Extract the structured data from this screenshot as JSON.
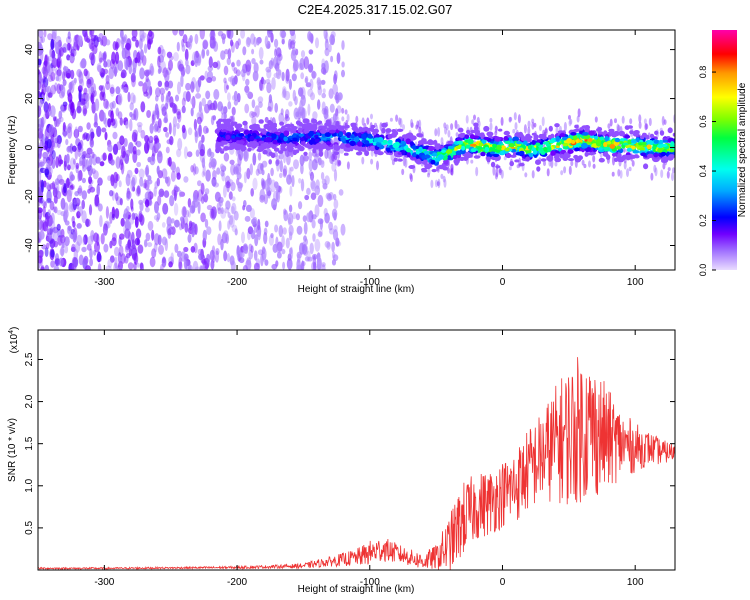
{
  "title": "C2E4.2025.317.15.02.G07",
  "colors": {
    "snr_line": "#ee3333",
    "noise_points": "#8a2be2",
    "frame": "#000000"
  },
  "colorbar": {
    "label": "Normalized spectral amplitude",
    "ticks": [
      "0.0",
      "0.2",
      "0.4",
      "0.6",
      "0.8"
    ],
    "tick_values": [
      0.0,
      0.2,
      0.4,
      0.6,
      0.8
    ],
    "range": [
      0.0,
      0.97
    ]
  },
  "chart_data": [
    {
      "type": "heatmap",
      "title": "C2E4.2025.317.15.02.G07",
      "xlabel": "Height of straight line (km)",
      "ylabel": "Frequency (Hz)",
      "xlim": [
        -350,
        130
      ],
      "ylim": [
        -50,
        48
      ],
      "x_ticks": [
        -300,
        -200,
        -100,
        0,
        100
      ],
      "x_tick_labels": [
        "-300",
        "-200",
        "-100",
        "0",
        "100"
      ],
      "y_ticks": [
        -40,
        -20,
        0,
        20,
        40
      ],
      "y_tick_labels": [
        "-40",
        "-20",
        "0",
        "20",
        "40"
      ],
      "value_label": "Normalized spectral amplitude",
      "value_range": [
        0.0,
        0.97
      ],
      "ridge": {
        "x": [
          -215,
          -180,
          -150,
          -120,
          -100,
          -80,
          -60,
          -50,
          -40,
          -30,
          -20,
          -10,
          0,
          10,
          20,
          30,
          40,
          50,
          60,
          70,
          80,
          90,
          100,
          110,
          120,
          130
        ],
        "freq_hz": [
          5,
          4,
          4,
          4,
          3,
          1,
          -2,
          -4,
          -2,
          1,
          1,
          0,
          0,
          1,
          -1,
          0,
          1,
          2,
          3,
          2,
          1,
          1,
          1,
          0,
          0,
          0
        ],
        "peak_amplitude": [
          0.25,
          0.3,
          0.35,
          0.4,
          0.45,
          0.5,
          0.55,
          0.6,
          0.7,
          0.8,
          0.85,
          0.9,
          0.9,
          0.85,
          0.8,
          0.8,
          0.85,
          0.9,
          0.95,
          0.9,
          0.9,
          0.85,
          0.85,
          0.8,
          0.8,
          0.8
        ]
      },
      "noise_extent_x": [
        -350,
        -130
      ]
    },
    {
      "type": "line",
      "xlabel": "Height of straight line (km)",
      "ylabel": "SNR (10 * v/v)",
      "y_scale_label": "(x10",
      "y_scale_exponent": "4",
      "y_scale_suffix": ")",
      "xlim": [
        -350,
        130
      ],
      "ylim": [
        0,
        2.85
      ],
      "x_ticks": [
        -300,
        -200,
        -100,
        0,
        100
      ],
      "x_tick_labels": [
        "-300",
        "-200",
        "-100",
        "0",
        "100"
      ],
      "y_ticks": [
        0.5,
        1.0,
        1.5,
        2.0,
        2.5
      ],
      "y_tick_labels": [
        "0.5",
        "1.0",
        "1.5",
        "2.0",
        "2.5"
      ],
      "series": [
        {
          "name": "SNR",
          "x": [
            -350,
            -300,
            -250,
            -200,
            -170,
            -150,
            -130,
            -110,
            -100,
            -90,
            -80,
            -70,
            -60,
            -50,
            -40,
            -30,
            -20,
            -10,
            0,
            10,
            20,
            30,
            40,
            50,
            60,
            70,
            80,
            90,
            100,
            110,
            120,
            130
          ],
          "envelope": [
            0.02,
            0.02,
            0.025,
            0.03,
            0.04,
            0.05,
            0.1,
            0.15,
            0.2,
            0.25,
            0.2,
            0.15,
            0.1,
            0.15,
            0.3,
            0.6,
            0.75,
            0.8,
            0.9,
            1.0,
            1.2,
            1.35,
            1.5,
            1.6,
            1.7,
            1.65,
            1.55,
            1.5,
            1.45,
            1.45,
            1.4,
            1.4
          ],
          "spread": [
            0.01,
            0.01,
            0.01,
            0.015,
            0.02,
            0.03,
            0.06,
            0.1,
            0.15,
            0.15,
            0.12,
            0.1,
            0.1,
            0.15,
            0.35,
            0.45,
            0.4,
            0.4,
            0.4,
            0.45,
            0.5,
            0.55,
            0.7,
            0.85,
            0.9,
            0.8,
            0.6,
            0.4,
            0.3,
            0.2,
            0.15,
            0.1
          ]
        }
      ]
    }
  ]
}
